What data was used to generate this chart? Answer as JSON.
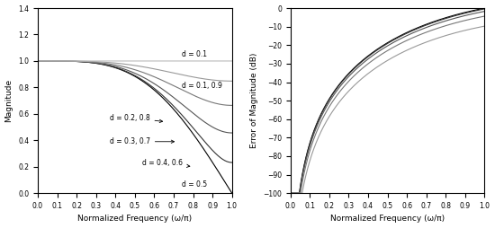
{
  "left_ylim": [
    0,
    1.4
  ],
  "left_yticks": [
    0,
    0.2,
    0.4,
    0.6,
    0.8,
    1.0,
    1.2,
    1.4
  ],
  "right_ylim": [
    -100,
    0
  ],
  "right_yticks": [
    -100,
    -90,
    -80,
    -70,
    -60,
    -50,
    -40,
    -30,
    -20,
    -10,
    0
  ],
  "xlim": [
    0,
    1
  ],
  "xticks": [
    0,
    0.1,
    0.2,
    0.3,
    0.4,
    0.5,
    0.6,
    0.7,
    0.8,
    0.9,
    1
  ],
  "xlabel": "Normalized Frequency (ω/π)",
  "left_ylabel": "Magnitude",
  "right_ylabel": "Error of Magnitude (dB)",
  "background_color": "#ffffff",
  "gray_levels": [
    "#000000",
    "#222222",
    "#444444",
    "#666666",
    "#888888",
    "#aaaaaa"
  ]
}
